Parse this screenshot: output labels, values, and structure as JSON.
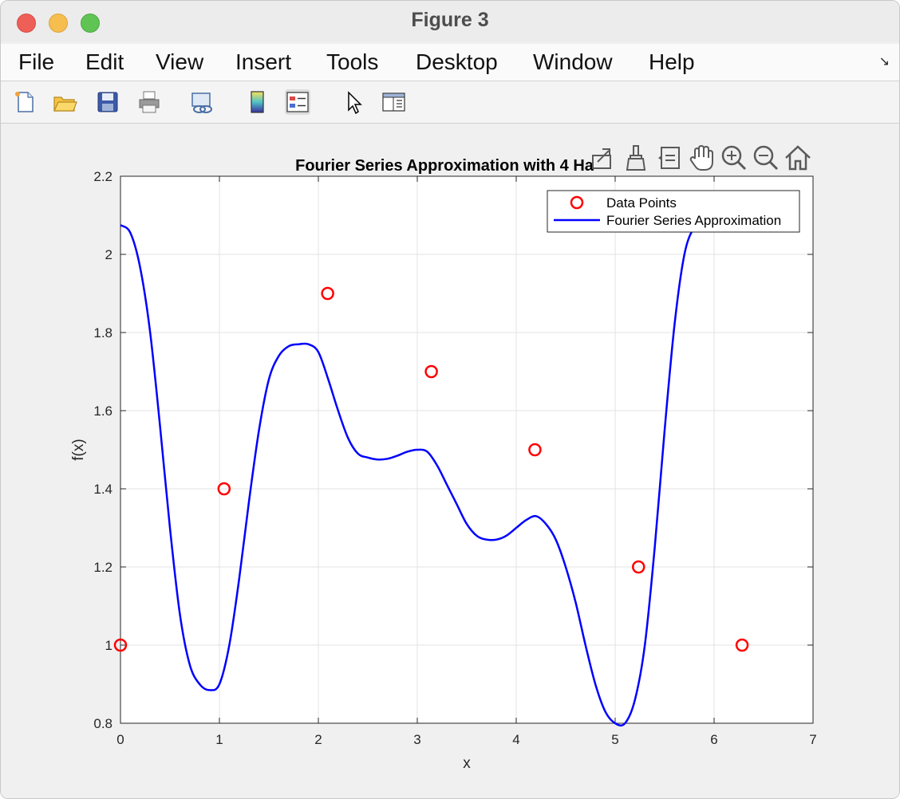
{
  "window": {
    "title": "Figure 3"
  },
  "menu": {
    "items": [
      "File",
      "Edit",
      "View",
      "Insert",
      "Tools",
      "Desktop",
      "Window",
      "Help"
    ]
  },
  "toolbar": {
    "buttons": [
      "new-figure-icon",
      "open-file-icon",
      "save-icon",
      "print-icon",
      "link-plot-icon",
      "colorbar-icon",
      "legend-icon",
      "edit-plot-cursor-icon",
      "property-inspector-icon"
    ]
  },
  "axes_toolbar": {
    "buttons": [
      "export-icon",
      "brush-icon",
      "datatip-icon",
      "pan-hand-icon",
      "zoom-in-icon",
      "zoom-out-icon",
      "home-icon"
    ]
  },
  "colors": {
    "curve": "#0000ff",
    "points": "#ff0000"
  },
  "chart_data": {
    "type": "line",
    "title": "Fourier Series Approximation with 4 Ha",
    "xlabel": "x",
    "ylabel": "f(x)",
    "xlim": [
      0,
      7
    ],
    "ylim": [
      0.8,
      2.2
    ],
    "xticks": [
      "0",
      "1",
      "2",
      "3",
      "4",
      "5",
      "6",
      "7"
    ],
    "yticks": [
      "0.8",
      "1",
      "1.2",
      "1.4",
      "1.6",
      "1.8",
      "2",
      "2.2"
    ],
    "grid": true,
    "legend_position": "top-right",
    "series": [
      {
        "name": "Data Points",
        "marker": "circle",
        "x": [
          0,
          1.047,
          2.094,
          3.142,
          4.189,
          5.236,
          6.283
        ],
        "y": [
          1.0,
          1.4,
          1.9,
          1.7,
          1.5,
          1.2,
          1.0
        ]
      },
      {
        "name": "Fourier Series Approximation",
        "line": "solid",
        "x": [
          0,
          0.1,
          0.2,
          0.3,
          0.4,
          0.5,
          0.6,
          0.7,
          0.8,
          0.9,
          1.0,
          1.1,
          1.2,
          1.3,
          1.4,
          1.5,
          1.6,
          1.7,
          1.8,
          1.9,
          2.0,
          2.1,
          2.2,
          2.3,
          2.4,
          2.5,
          2.6,
          2.7,
          2.8,
          2.9,
          3.0,
          3.1,
          3.2,
          3.3,
          3.4,
          3.5,
          3.6,
          3.7,
          3.8,
          3.9,
          4.0,
          4.1,
          4.2,
          4.3,
          4.4,
          4.5,
          4.6,
          4.7,
          4.8,
          4.9,
          5.0,
          5.1,
          5.2,
          5.3,
          5.4,
          5.5,
          5.6,
          5.7,
          5.8,
          5.9,
          6.0
        ],
        "y": [
          2.075,
          2.055,
          1.965,
          1.8,
          1.56,
          1.3,
          1.08,
          0.95,
          0.9,
          0.885,
          0.9,
          1.0,
          1.17,
          1.37,
          1.55,
          1.68,
          1.74,
          1.765,
          1.77,
          1.77,
          1.75,
          1.68,
          1.6,
          1.53,
          1.49,
          1.48,
          1.475,
          1.477,
          1.485,
          1.495,
          1.5,
          1.495,
          1.46,
          1.41,
          1.36,
          1.31,
          1.28,
          1.27,
          1.27,
          1.28,
          1.3,
          1.32,
          1.33,
          1.31,
          1.27,
          1.2,
          1.11,
          1.0,
          0.9,
          0.83,
          0.8,
          0.8,
          0.86,
          1.0,
          1.25,
          1.55,
          1.82,
          2.0,
          2.07,
          2.09,
          2.1
        ]
      }
    ]
  }
}
